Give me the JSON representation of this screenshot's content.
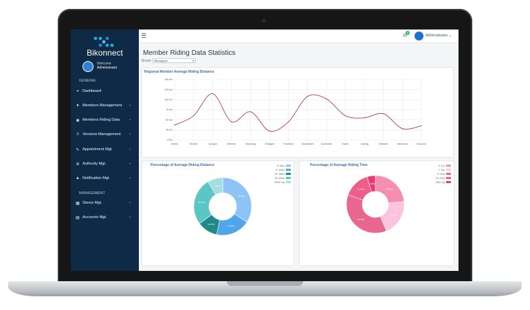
{
  "app": {
    "brand": "Bikonnect",
    "welcome": "Welcome",
    "user": "Administrator"
  },
  "sidebar": {
    "section_general": "GENERAL",
    "section_management": "MANAGEMENT",
    "items": [
      {
        "label": "Dashboard",
        "icon": "palette-icon"
      },
      {
        "label": "Members Management",
        "icon": "users-icon"
      },
      {
        "label": "Members Riding Data",
        "icon": "compass-icon"
      },
      {
        "label": "Versions Management",
        "icon": "database-icon"
      },
      {
        "label": "Appointment Mgt.",
        "icon": "wrench-icon"
      },
      {
        "label": "Authority Mgt.",
        "icon": "gears-icon"
      },
      {
        "label": "Notification Mgt.",
        "icon": "bell-icon"
      },
      {
        "label": "Stores Mgt.",
        "icon": "building-icon"
      },
      {
        "label": "Accounts Mgt.",
        "icon": "list-icon"
      }
    ]
  },
  "topbar": {
    "mail_count": "8",
    "user": "Administrator"
  },
  "page": {
    "title": "Member Riding Data Statistics",
    "brand_label": "Brand",
    "brand_value": "Bikonjapan"
  },
  "line_panel": {
    "title": "Regional Member Average Riding Distance"
  },
  "donut_left": {
    "title": "Percentage of Average Riding Distance"
  },
  "donut_right": {
    "title": "Percentage of Average Riding Time"
  },
  "chart_data": [
    {
      "type": "line",
      "title": "Regional Member Average Riding Distance",
      "categories": [
        "Berlin",
        "Munich",
        "Cologne",
        "Bremen",
        "Hamburg",
        "Stuttgart",
        "Frankfurt",
        "Dusseldorf",
        "Dortmund",
        "Essen",
        "Leipzig",
        "Dresden",
        "Hannover",
        "Bochum"
      ],
      "values": [
        37,
        60,
        115,
        45,
        70,
        22,
        45,
        108,
        102,
        60,
        55,
        65,
        28,
        35
      ],
      "y_ticks": [
        "0 km",
        "25 km",
        "50 km",
        "75 km",
        "100 km",
        "125 km",
        "150 km"
      ],
      "ylim": [
        0,
        150
      ],
      "grid": true,
      "color": "#b03a48"
    },
    {
      "type": "pie",
      "title": "Percentage of Average Riding Distance",
      "labels": [
        "0~5km",
        "5~10km",
        "10~15km",
        "15~20km",
        "20km~up"
      ],
      "values": [
        30.56,
        17.18,
        10.25,
        23.79,
        7.64
      ],
      "value_labels": [
        "30.56%",
        "17.18%",
        "10.25%",
        "23.79%",
        "7.64%"
      ],
      "colors": [
        "#8ec3f7",
        "#4fa6ea",
        "#1e8a8a",
        "#5cc6c6",
        "#a6dee0"
      ],
      "legend": "top-right"
    },
    {
      "type": "pie",
      "title": "Percentage of Average Riding Time",
      "labels": [
        "0~1hr",
        "1~3hr",
        "3~10hr",
        "10~20hr",
        "20hr~up"
      ],
      "values": [
        24.56,
        21.34,
        38.36,
        15.75,
        4.86
      ],
      "value_labels": [
        "24.56%",
        "21.34%",
        "38.36%",
        "15.75%",
        "4.86%"
      ],
      "colors": [
        "#f48fb1",
        "#fbc3dd",
        "#e8678f",
        "#ef5e8b",
        "#e83a78"
      ],
      "legend": "top-right"
    }
  ]
}
